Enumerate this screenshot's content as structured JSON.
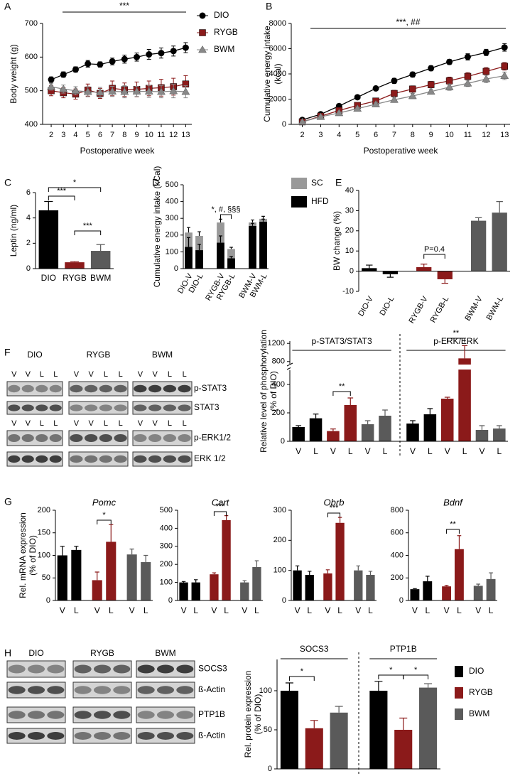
{
  "panels": [
    "A",
    "B",
    "C",
    "D",
    "E",
    "F",
    "G",
    "H"
  ],
  "blots": {
    "F": {
      "groups": [
        "DIO",
        "RYGB",
        "BWM"
      ],
      "lanes": [
        "V",
        "V",
        "L",
        "L"
      ],
      "rows": [
        "p-STAT3",
        "STAT3",
        "p-ERK1/2",
        "ERK 1/2"
      ]
    },
    "H": {
      "groups": [
        "DIO",
        "RYGB",
        "BWM"
      ],
      "rows": [
        "SOCS3",
        "ß-Actin",
        "PTP1B",
        "ß-Actin"
      ]
    }
  },
  "chart_data": [
    {
      "type": "line",
      "x_label": "Postoperative week",
      "y_label": "Body weight (g)",
      "x": [
        2,
        3,
        4,
        5,
        6,
        7,
        8,
        9,
        10,
        11,
        12,
        13
      ],
      "xlim": [
        1.3,
        13.5
      ],
      "xticks": [
        2,
        3,
        4,
        5,
        6,
        7,
        8,
        9,
        10,
        11,
        12,
        13
      ],
      "ylim": [
        400,
        700
      ],
      "yticks": [
        400,
        500,
        600,
        700
      ],
      "annotation": "***",
      "legend": "right",
      "series": [
        {
          "name": "DIO",
          "color": "#000000",
          "marker": "circle",
          "values": [
            533,
            548,
            563,
            580,
            578,
            587,
            594,
            600,
            608,
            612,
            618,
            628
          ],
          "errors": [
            8,
            8,
            8,
            10,
            8,
            10,
            12,
            12,
            15,
            15,
            15,
            15
          ]
        },
        {
          "name": "RYGB",
          "color": "#8b1a1a",
          "marker": "square",
          "values": [
            500,
            494,
            490,
            502,
            492,
            507,
            503,
            504,
            507,
            509,
            512,
            520
          ],
          "errors": [
            15,
            15,
            15,
            18,
            15,
            22,
            20,
            22,
            22,
            25,
            25,
            25
          ]
        },
        {
          "name": "BWM",
          "color": "#888888",
          "marker": "triangle",
          "values": [
            512,
            505,
            500,
            497,
            495,
            498,
            497,
            498,
            498,
            497,
            499,
            497
          ],
          "errors": [
            10,
            12,
            12,
            15,
            15,
            15,
            18,
            15,
            18,
            18,
            20,
            18
          ]
        }
      ]
    },
    {
      "type": "line",
      "x_label": "Postoperative week",
      "y_label": [
        "Cumulative energy intake",
        "(kcal)"
      ],
      "x": [
        2,
        3,
        4,
        5,
        6,
        7,
        8,
        9,
        10,
        11,
        12,
        13
      ],
      "xlim": [
        1.4,
        13.3
      ],
      "xticks": [
        2,
        3,
        4,
        5,
        6,
        7,
        8,
        9,
        10,
        11,
        12,
        13
      ],
      "ylim": [
        0,
        8000
      ],
      "yticks": [
        0,
        2000,
        4000,
        6000,
        8000
      ],
      "annotation": "***, ##",
      "series": [
        {
          "color": "#000000",
          "marker": "circle",
          "values": [
            350,
            800,
            1450,
            2150,
            2850,
            3450,
            3950,
            4450,
            4950,
            5350,
            5700,
            6100
          ],
          "errors": [
            50,
            80,
            100,
            120,
            150,
            200,
            200,
            200,
            200,
            250,
            250,
            300
          ]
        },
        {
          "color": "#8b1a1a",
          "marker": "square",
          "values": [
            200,
            650,
            1100,
            1500,
            1850,
            2450,
            2800,
            3150,
            3450,
            3800,
            4200,
            4600
          ],
          "errors": [
            50,
            80,
            100,
            150,
            200,
            250,
            250,
            250,
            300,
            300,
            300,
            300
          ]
        },
        {
          "color": "#888888",
          "marker": "triangle",
          "values": [
            200,
            600,
            900,
            1250,
            1600,
            1950,
            2250,
            2600,
            2950,
            3250,
            3600,
            3850
          ],
          "errors": [
            50,
            80,
            100,
            120,
            150,
            200,
            200,
            200,
            250,
            250,
            300,
            300
          ]
        }
      ]
    },
    {
      "type": "bar",
      "y_label": "Leptin (ng/ml)",
      "categories": [
        "DIO",
        "RYGB",
        "BWM"
      ],
      "colors": [
        "#000000",
        "#8b1a1a",
        "#5a5a5a"
      ],
      "values": [
        4.6,
        0.5,
        1.4
      ],
      "errors": [
        0.7,
        0.05,
        0.5
      ],
      "ylim": [
        0,
        6
      ],
      "yticks": [
        0,
        2,
        4,
        6
      ],
      "annotations": [
        "***",
        "*",
        "***"
      ]
    },
    {
      "type": "bar",
      "stacked": true,
      "y_label": "Cumulative energy intake (kCal)",
      "categories": [
        "DIO-V",
        "DIO-L",
        "RYGB-V",
        "RYGB-L",
        "BWM-V",
        "BWM-L"
      ],
      "series": [
        {
          "name": "SC",
          "color": "#999999",
          "values": [
            85,
            85,
            120,
            55,
            20,
            17
          ],
          "errors": [
            30,
            25,
            20,
            10,
            15,
            15
          ]
        },
        {
          "name": "HFD",
          "color": "#000000",
          "values": [
            130,
            110,
            155,
            62,
            255,
            280
          ],
          "errors": [
            55,
            35,
            40,
            10,
            15,
            15
          ]
        }
      ],
      "ylim": [
        0,
        500
      ],
      "yticks": [
        0,
        100,
        200,
        300,
        400,
        500
      ],
      "annotations": [
        "*, #, §§§"
      ]
    },
    {
      "type": "bar",
      "y_label": "BW change (%)",
      "categories": [
        "DIO-V",
        "DIO-L",
        "RYGB-V",
        "RYGB-L",
        "BWM-V",
        "BWM-L"
      ],
      "colors": [
        "#000000",
        "#000000",
        "#8b1a1a",
        "#8b1a1a",
        "#5a5a5a",
        "#5a5a5a"
      ],
      "values": [
        1.5,
        -1.5,
        2,
        -4,
        25,
        29
      ],
      "errors": [
        1.5,
        1.5,
        1.5,
        2,
        1.5,
        5.5
      ],
      "ylim": [
        -10,
        40
      ],
      "yticks": [
        -10,
        0,
        10,
        20,
        30,
        40
      ],
      "annotations": [
        "P=0.4"
      ]
    },
    {
      "type": "bar",
      "y_label": [
        "Relative level of phosphorylation",
        "(% of DIO)"
      ],
      "categories": [
        "V",
        "L",
        "V",
        "L",
        "V",
        "L"
      ],
      "colors": [
        "#000000",
        "#000000",
        "#8b1a1a",
        "#8b1a1a",
        "#5a5a5a",
        "#5a5a5a"
      ],
      "panels": [
        {
          "name": "p-STAT3/STAT3",
          "values": [
            100,
            162,
            72,
            255,
            120,
            180
          ],
          "errors": [
            10,
            30,
            15,
            50,
            25,
            40
          ]
        },
        {
          "name": "p-ERK/ERK",
          "values": [
            125,
            190,
            300,
            870,
            80,
            90
          ],
          "errors": [
            20,
            40,
            10,
            280,
            30,
            20
          ]
        }
      ],
      "ylim": [
        0,
        1250
      ],
      "ybreak": [
        500,
        750
      ],
      "yticks": [
        0,
        200,
        400,
        800,
        1200
      ],
      "annotations": [
        "**",
        "**"
      ]
    },
    {
      "type": "bar",
      "title": "Pomc",
      "y_label": [
        "Rel. mRNA expression",
        "(% of DIO)"
      ],
      "categories": [
        "V",
        "L",
        "V",
        "L",
        "V",
        "L"
      ],
      "colors": [
        "#000000",
        "#000000",
        "#8b1a1a",
        "#8b1a1a",
        "#5a5a5a",
        "#5a5a5a"
      ],
      "values": [
        100,
        112,
        45,
        130,
        102,
        85
      ],
      "errors": [
        20,
        8,
        18,
        38,
        12,
        15
      ],
      "ylim": [
        0,
        200
      ],
      "yticks": [
        0,
        50,
        100,
        150,
        200
      ],
      "annotations": [
        "*"
      ]
    },
    {
      "type": "bar",
      "title": "Cart",
      "categories": [
        "V",
        "L",
        "V",
        "L",
        "V",
        "L"
      ],
      "colors": [
        "#000000",
        "#000000",
        "#8b1a1a",
        "#8b1a1a",
        "#5a5a5a",
        "#5a5a5a"
      ],
      "values": [
        100,
        100,
        145,
        445,
        100,
        185
      ],
      "errors": [
        5,
        15,
        8,
        25,
        10,
        35
      ],
      "ylim": [
        0,
        500
      ],
      "yticks": [
        0,
        100,
        200,
        300,
        400,
        500
      ],
      "annotations": [
        "***"
      ]
    },
    {
      "type": "bar",
      "title": "Obrb",
      "categories": [
        "V",
        "L",
        "V",
        "L",
        "V",
        "L"
      ],
      "colors": [
        "#000000",
        "#000000",
        "#8b1a1a",
        "#8b1a1a",
        "#5a5a5a",
        "#5a5a5a"
      ],
      "values": [
        100,
        85,
        90,
        258,
        100,
        85
      ],
      "errors": [
        15,
        12,
        12,
        18,
        15,
        12
      ],
      "ylim": [
        0,
        300
      ],
      "yticks": [
        0,
        100,
        200,
        300
      ],
      "annotations": [
        "***"
      ]
    },
    {
      "type": "bar",
      "title": "Bdnf",
      "categories": [
        "V",
        "L",
        "V",
        "L",
        "V",
        "L"
      ],
      "colors": [
        "#000000",
        "#000000",
        "#8b1a1a",
        "#8b1a1a",
        "#5a5a5a",
        "#5a5a5a"
      ],
      "values": [
        100,
        170,
        125,
        455,
        130,
        190
      ],
      "errors": [
        5,
        45,
        8,
        120,
        15,
        55
      ],
      "ylim": [
        0,
        800
      ],
      "yticks": [
        0,
        200,
        400,
        600,
        800
      ],
      "annotations": [
        "**"
      ]
    },
    {
      "type": "bar",
      "y_label": [
        "Rel. protein expression",
        "(% of DIO)"
      ],
      "categories": [
        "SOCS3",
        "PTP1B"
      ],
      "series": [
        {
          "name": "DIO",
          "color": "#000000",
          "values": [
            100,
            100
          ],
          "errors": [
            10,
            12
          ]
        },
        {
          "name": "RYGB",
          "color": "#8b1a1a",
          "values": [
            52,
            50
          ],
          "errors": [
            10,
            15
          ]
        },
        {
          "name": "BWM",
          "color": "#5a5a5a",
          "values": [
            72,
            104
          ],
          "errors": [
            8,
            5
          ]
        }
      ],
      "ylim": [
        0,
        140
      ],
      "yticks": [
        0,
        50,
        100
      ],
      "annotations": [
        "*",
        "*",
        "*"
      ]
    }
  ]
}
